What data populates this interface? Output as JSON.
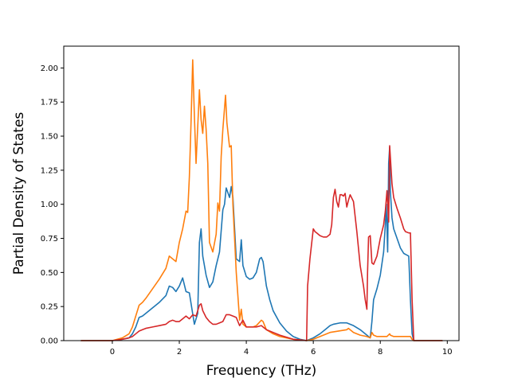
{
  "chart_data": {
    "type": "line",
    "title": "",
    "xlabel": "Frequency (THz)",
    "ylabel": "Partial Density of States",
    "xlim": [
      -1.45,
      10.35
    ],
    "ylim": [
      0,
      2.16
    ],
    "xticks": [
      0,
      2,
      4,
      6,
      8,
      10
    ],
    "xtick_labels": [
      "0",
      "2",
      "4",
      "6",
      "8",
      "10"
    ],
    "yticks": [
      0,
      0.25,
      0.5,
      0.75,
      1.0,
      1.25,
      1.5,
      1.75,
      2.0
    ],
    "ytick_labels": [
      "0.00",
      "0.25",
      "0.50",
      "0.75",
      "1.00",
      "1.25",
      "1.50",
      "1.75",
      "2.00"
    ],
    "grid": false,
    "legend": "none",
    "series": [
      {
        "color": "#1f77b4",
        "x": [
          -0.93,
          0.0,
          0.3,
          0.5,
          0.6,
          0.7,
          0.8,
          0.9,
          1.0,
          1.2,
          1.4,
          1.6,
          1.7,
          1.8,
          1.9,
          2.0,
          2.1,
          2.2,
          2.3,
          2.45,
          2.55,
          2.6,
          2.65,
          2.7,
          2.8,
          2.9,
          3.0,
          3.1,
          3.2,
          3.3,
          3.35,
          3.4,
          3.5,
          3.55,
          3.6,
          3.7,
          3.8,
          3.85,
          3.9,
          4.0,
          4.1,
          4.2,
          4.3,
          4.4,
          4.45,
          4.5,
          4.6,
          4.7,
          4.8,
          5.0,
          5.2,
          5.4,
          5.6,
          5.8,
          6.0,
          6.2,
          6.4,
          6.5,
          6.6,
          6.8,
          7.0,
          7.2,
          7.4,
          7.6,
          7.7,
          7.75,
          7.8,
          7.9,
          8.0,
          8.1,
          8.15,
          8.18,
          8.22,
          8.25,
          8.28,
          8.3,
          8.35,
          8.4,
          8.5,
          8.6,
          8.7,
          8.85,
          8.9,
          8.95,
          9.0,
          9.85
        ],
        "y": [
          0.0,
          0.0,
          0.01,
          0.02,
          0.05,
          0.1,
          0.17,
          0.18,
          0.2,
          0.24,
          0.28,
          0.33,
          0.4,
          0.39,
          0.36,
          0.4,
          0.46,
          0.36,
          0.35,
          0.12,
          0.2,
          0.72,
          0.82,
          0.62,
          0.48,
          0.39,
          0.43,
          0.55,
          0.65,
          0.96,
          1.0,
          1.12,
          1.05,
          1.13,
          1.05,
          0.6,
          0.58,
          0.74,
          0.55,
          0.47,
          0.45,
          0.46,
          0.5,
          0.6,
          0.61,
          0.58,
          0.4,
          0.3,
          0.22,
          0.13,
          0.07,
          0.03,
          0.01,
          0.0,
          0.02,
          0.05,
          0.09,
          0.11,
          0.12,
          0.13,
          0.13,
          0.11,
          0.08,
          0.04,
          0.02,
          0.14,
          0.3,
          0.38,
          0.48,
          0.65,
          0.85,
          1.0,
          0.65,
          1.3,
          1.42,
          1.1,
          0.9,
          0.82,
          0.75,
          0.68,
          0.64,
          0.62,
          0.3,
          0.05,
          0.0,
          0.0
        ]
      },
      {
        "color": "#ff7f0e",
        "x": [
          -0.93,
          0.0,
          0.3,
          0.5,
          0.6,
          0.7,
          0.8,
          0.9,
          1.0,
          1.2,
          1.4,
          1.6,
          1.7,
          1.8,
          1.9,
          2.0,
          2.1,
          2.2,
          2.25,
          2.3,
          2.35,
          2.4,
          2.45,
          2.5,
          2.6,
          2.65,
          2.7,
          2.75,
          2.8,
          2.85,
          2.9,
          3.0,
          3.1,
          3.15,
          3.2,
          3.25,
          3.3,
          3.38,
          3.42,
          3.5,
          3.55,
          3.6,
          3.7,
          3.8,
          3.85,
          3.9,
          4.0,
          4.2,
          4.3,
          4.45,
          4.5,
          4.6,
          4.8,
          5.0,
          5.4,
          5.8,
          6.0,
          6.5,
          7.0,
          7.05,
          7.2,
          7.4,
          7.6,
          7.7,
          7.75,
          7.8,
          7.9,
          8.0,
          8.1,
          8.2,
          8.28,
          8.3,
          8.4,
          8.6,
          8.8,
          8.9,
          8.95,
          9.0,
          9.85
        ],
        "y": [
          0.0,
          0.0,
          0.02,
          0.05,
          0.1,
          0.18,
          0.26,
          0.28,
          0.31,
          0.38,
          0.45,
          0.53,
          0.62,
          0.6,
          0.58,
          0.72,
          0.82,
          0.95,
          0.94,
          1.2,
          1.6,
          2.06,
          1.65,
          1.3,
          1.84,
          1.62,
          1.52,
          1.72,
          1.55,
          1.3,
          0.72,
          0.65,
          0.78,
          1.01,
          0.95,
          1.35,
          1.55,
          1.8,
          1.6,
          1.42,
          1.43,
          1.0,
          0.5,
          0.15,
          0.23,
          0.12,
          0.1,
          0.1,
          0.11,
          0.15,
          0.14,
          0.08,
          0.05,
          0.03,
          0.01,
          0.0,
          0.01,
          0.06,
          0.08,
          0.09,
          0.06,
          0.04,
          0.03,
          0.02,
          0.06,
          0.04,
          0.03,
          0.03,
          0.03,
          0.03,
          0.05,
          0.04,
          0.03,
          0.03,
          0.03,
          0.03,
          0.01,
          0.0,
          0.0
        ]
      },
      {
        "color": "#d62728",
        "x": [
          -0.93,
          0.0,
          0.3,
          0.5,
          0.6,
          0.7,
          0.8,
          0.9,
          1.0,
          1.2,
          1.4,
          1.6,
          1.7,
          1.8,
          1.9,
          2.0,
          2.1,
          2.2,
          2.3,
          2.4,
          2.5,
          2.6,
          2.65,
          2.7,
          2.8,
          2.9,
          3.0,
          3.1,
          3.2,
          3.3,
          3.4,
          3.5,
          3.6,
          3.7,
          3.8,
          3.9,
          4.0,
          4.2,
          4.3,
          4.45,
          4.5,
          4.6,
          4.8,
          5.0,
          5.4,
          5.8,
          5.83,
          5.9,
          6.0,
          6.05,
          6.1,
          6.2,
          6.3,
          6.4,
          6.5,
          6.55,
          6.6,
          6.65,
          6.7,
          6.75,
          6.8,
          6.85,
          6.9,
          6.95,
          7.0,
          7.05,
          7.1,
          7.2,
          7.3,
          7.4,
          7.5,
          7.55,
          7.6,
          7.62,
          7.65,
          7.7,
          7.75,
          7.8,
          7.9,
          8.0,
          8.1,
          8.15,
          8.2,
          8.25,
          8.28,
          8.3,
          8.35,
          8.4,
          8.5,
          8.6,
          8.7,
          8.75,
          8.85,
          8.9,
          8.95,
          9.0,
          9.85
        ],
        "y": [
          0.0,
          0.0,
          0.01,
          0.02,
          0.03,
          0.05,
          0.07,
          0.08,
          0.09,
          0.1,
          0.11,
          0.12,
          0.14,
          0.15,
          0.14,
          0.14,
          0.16,
          0.18,
          0.16,
          0.19,
          0.18,
          0.26,
          0.27,
          0.22,
          0.17,
          0.14,
          0.12,
          0.12,
          0.13,
          0.14,
          0.19,
          0.19,
          0.18,
          0.17,
          0.11,
          0.15,
          0.1,
          0.1,
          0.1,
          0.11,
          0.1,
          0.08,
          0.06,
          0.04,
          0.01,
          0.0,
          0.4,
          0.6,
          0.82,
          0.8,
          0.79,
          0.77,
          0.76,
          0.76,
          0.78,
          0.85,
          1.05,
          1.11,
          1.02,
          0.98,
          1.07,
          1.07,
          1.06,
          1.08,
          0.98,
          1.03,
          1.07,
          1.02,
          0.8,
          0.55,
          0.4,
          0.3,
          0.23,
          0.5,
          0.76,
          0.77,
          0.57,
          0.56,
          0.62,
          0.75,
          0.85,
          0.95,
          1.1,
          0.87,
          1.43,
          1.35,
          1.15,
          1.05,
          0.97,
          0.9,
          0.82,
          0.8,
          0.79,
          0.79,
          0.3,
          0.0,
          0.0
        ]
      }
    ]
  }
}
